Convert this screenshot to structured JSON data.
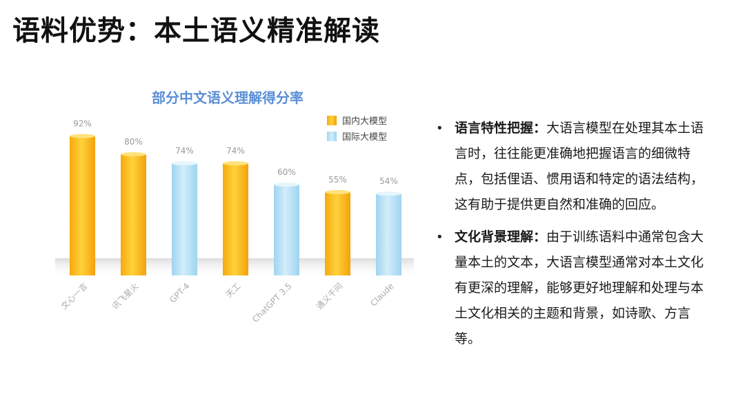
{
  "slide": {
    "title": "语料优势：本土语义精准解读"
  },
  "colors": {
    "domestic": "#fbbf17",
    "domestic_dark": "#f2a20c",
    "international": "#b8e2f6",
    "international_dark": "#8fcdee",
    "title_blue": "#5b8fd6"
  },
  "chart_data": {
    "type": "bar",
    "title": "部分中文语义理解得分率",
    "categories": [
      "文心一言",
      "讯飞星火",
      "GPT-4",
      "天工",
      "ChatGPT 3.5",
      "通义千问",
      "Claude"
    ],
    "values": [
      92,
      80,
      74,
      74,
      60,
      55,
      54
    ],
    "value_labels": [
      "92%",
      "80%",
      "74%",
      "74%",
      "60%",
      "55%",
      "54%"
    ],
    "groups": [
      "domestic",
      "domestic",
      "international",
      "domestic",
      "international",
      "domestic",
      "international"
    ],
    "legend": [
      {
        "key": "domestic",
        "label": "国内大模型"
      },
      {
        "key": "international",
        "label": "国际大模型"
      }
    ],
    "legend_position": "top-right",
    "ylim": [
      0,
      100
    ],
    "grid": false
  },
  "bullets": [
    {
      "head": "语言特性把握：",
      "text": "大语言模型在处理其本土语言时，往往能更准确地把握语言的细微特点，包括俚语、惯用语和特定的语法结构，这有助于提供更自然和准确的回应。"
    },
    {
      "head": "文化背景理解：",
      "text": "由于训练语料中通常包含大量本土的文本，大语言模型通常对本土文化有更深的理解，能够更好地理解和处理与本土文化相关的主题和背景，如诗歌、方言等。"
    }
  ]
}
